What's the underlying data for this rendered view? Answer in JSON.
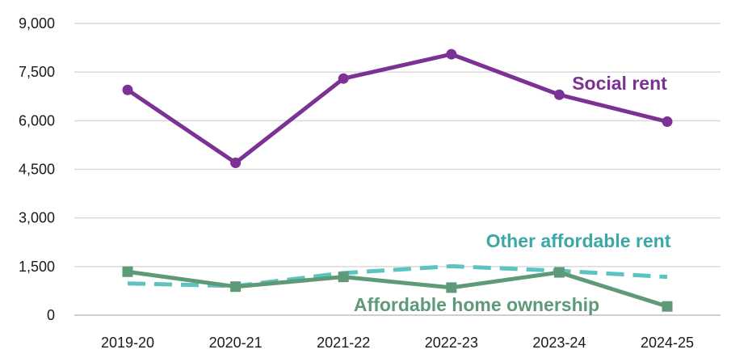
{
  "chart_data": {
    "type": "line",
    "categories": [
      "2019-20",
      "2020-21",
      "2021-22",
      "2022-23",
      "2023-24",
      "2024-25"
    ],
    "ylim": [
      0,
      9000
    ],
    "yticks": [
      0,
      1500,
      3000,
      4500,
      6000,
      7500,
      9000
    ],
    "ytick_labels": [
      "0",
      "1,500",
      "3,000",
      "4,500",
      "6,000",
      "7,500",
      "9,000"
    ],
    "grid": true,
    "legend": "inline labels",
    "series": [
      {
        "name": "Social rent",
        "values": [
          6950,
          4700,
          7300,
          8050,
          6800,
          5970
        ],
        "color": "#7b3294",
        "style": "solid",
        "marker": "circle"
      },
      {
        "name": "Other affordable rent",
        "values": [
          980,
          900,
          1300,
          1510,
          1370,
          1180
        ],
        "color": "#5bc4c0",
        "style": "dashed",
        "marker": "none"
      },
      {
        "name": "Affordable home ownership",
        "values": [
          1340,
          880,
          1180,
          850,
          1320,
          270
        ],
        "color": "#5e9a78",
        "style": "solid",
        "marker": "square"
      }
    ],
    "label_colors": [
      "#7b3294",
      "#3aa8a4",
      "#5e9a78"
    ]
  }
}
